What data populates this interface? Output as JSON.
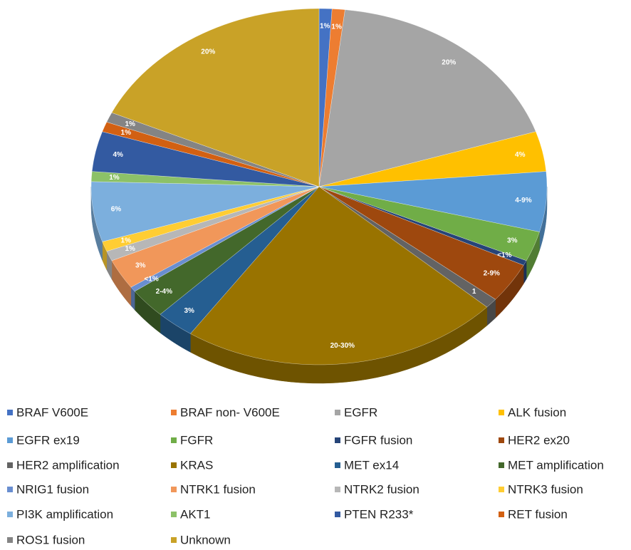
{
  "chart_data": {
    "type": "pie",
    "series": [
      {
        "name": "BRAF V600E",
        "color": "#4472c4",
        "values": [
          1
        ],
        "value_labels": [
          "1%"
        ]
      },
      {
        "name": "BRAF non- V600E",
        "color": "#ed7d31",
        "values": [
          1
        ],
        "value_labels": [
          "1%"
        ]
      },
      {
        "name": "EGFR",
        "color": "#a5a5a5",
        "values": [
          20
        ],
        "value_labels": [
          "20%"
        ]
      },
      {
        "name": "ALK fusion",
        "color": "#ffc000",
        "values": [
          4
        ],
        "value_labels": [
          "4%"
        ]
      },
      {
        "name": "EGFR ex19",
        "color": "#5b9bd5",
        "values": [
          6
        ],
        "value_labels": [
          "4-9%"
        ]
      },
      {
        "name": "FGFR",
        "color": "#70ad47",
        "values": [
          3
        ],
        "value_labels": [
          "3%"
        ]
      },
      {
        "name": "FGFR fusion",
        "color": "#264478",
        "values": [
          0.5
        ],
        "value_labels": [
          "<1%"
        ]
      },
      {
        "name": "HER2 ex20",
        "color": "#9e480e",
        "values": [
          4
        ],
        "value_labels": [
          "2-9%"
        ]
      },
      {
        "name": "HER2 amplification",
        "color": "#636363",
        "values": [
          1
        ],
        "value_labels": [
          "1"
        ]
      },
      {
        "name": "KRAS",
        "color": "#997300",
        "values": [
          25
        ],
        "value_labels": [
          "20-30%"
        ]
      },
      {
        "name": "MET ex14",
        "color": "#255e91",
        "values": [
          3
        ],
        "value_labels": [
          "3%"
        ]
      },
      {
        "name": "MET amplification",
        "color": "#43682b",
        "values": [
          3
        ],
        "value_labels": [
          "2-4%"
        ]
      },
      {
        "name": "NRIG1 fusion",
        "color": "#698ed0",
        "values": [
          0.5
        ],
        "value_labels": [
          "<1%"
        ]
      },
      {
        "name": "NTRK1 fusion",
        "color": "#f1975a",
        "values": [
          3
        ],
        "value_labels": [
          "3%"
        ]
      },
      {
        "name": "NTRK2 fusion",
        "color": "#b7b7b7",
        "values": [
          1
        ],
        "value_labels": [
          "1%"
        ]
      },
      {
        "name": "NTRK3 fusion",
        "color": "#ffcd33",
        "values": [
          1
        ],
        "value_labels": [
          "1%"
        ]
      },
      {
        "name": "PI3K amplification",
        "color": "#7cafdd",
        "values": [
          6
        ],
        "value_labels": [
          "6%"
        ]
      },
      {
        "name": "AKT1",
        "color": "#8cc168",
        "values": [
          1
        ],
        "value_labels": [
          "1%"
        ]
      },
      {
        "name": "PTEN R233*",
        "color": "#335aa1",
        "values": [
          4
        ],
        "value_labels": [
          "4%"
        ]
      },
      {
        "name": "RET fusion",
        "color": "#d26012",
        "values": [
          1
        ],
        "value_labels": [
          "1%"
        ]
      },
      {
        "name": "ROS1 fusion",
        "color": "#848484",
        "values": [
          1
        ],
        "value_labels": [
          "1%"
        ]
      },
      {
        "name": "Unknown",
        "color": "#c9a227",
        "values": [
          20
        ],
        "value_labels": [
          "20%"
        ]
      }
    ]
  }
}
